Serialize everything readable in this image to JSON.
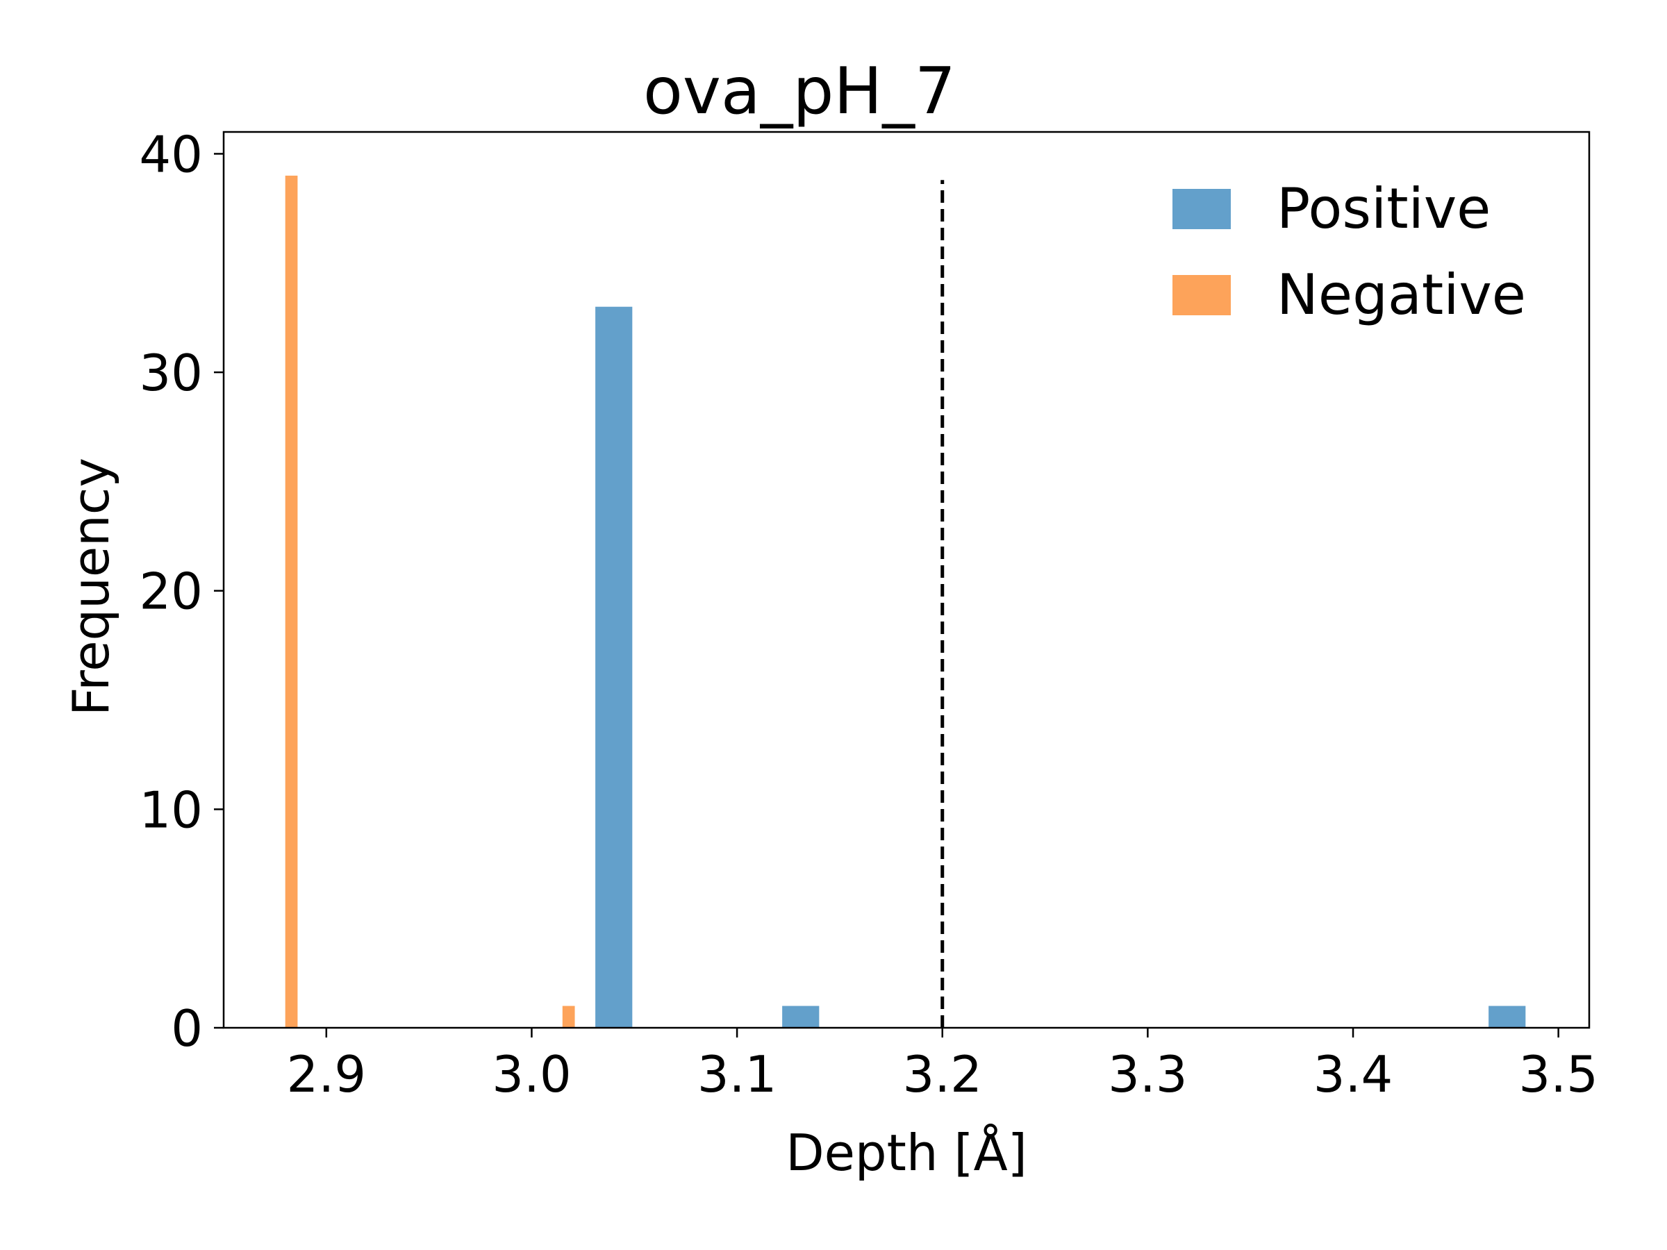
{
  "chart_data": {
    "type": "bar",
    "title": "ova_pH_7",
    "xlabel": "Depth [Å]",
    "ylabel": "Frequency",
    "xlim": [
      2.85,
      3.515
    ],
    "ylim": [
      0,
      41
    ],
    "xticks": [
      "2.9",
      "3.0",
      "3.1",
      "3.2",
      "3.3",
      "3.4",
      "3.5"
    ],
    "yticks": [
      "0",
      "10",
      "20",
      "30",
      "40"
    ],
    "grid": false,
    "legend_position": "top-right",
    "series": [
      {
        "name": "Positive",
        "color": "#63a0cb",
        "bars": [
          {
            "x0": 3.031,
            "x1": 3.049,
            "value": 33
          },
          {
            "x0": 3.122,
            "x1": 3.14,
            "value": 1
          },
          {
            "x0": 3.466,
            "x1": 3.484,
            "value": 1
          }
        ]
      },
      {
        "name": "Negative",
        "color": "#fda35a",
        "bars": [
          {
            "x0": 2.88,
            "x1": 2.886,
            "value": 39
          },
          {
            "x0": 3.015,
            "x1": 3.021,
            "value": 1
          }
        ]
      }
    ],
    "reference_line": {
      "x": 3.2,
      "style": "dashed",
      "color": "#000000",
      "y_top": 38.8
    }
  }
}
